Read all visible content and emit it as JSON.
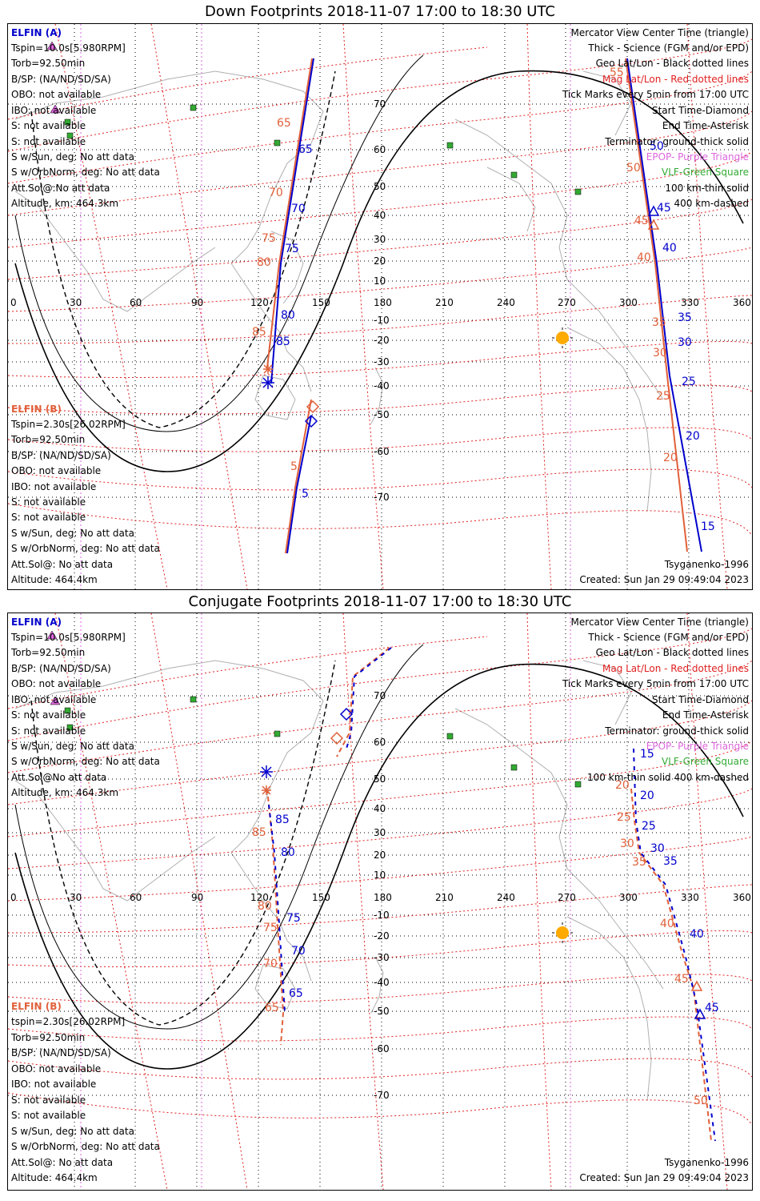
{
  "panels": [
    {
      "title": "Down Footprints 2018-11-07 17:00 to 18:30 UTC",
      "elfin_a": {
        "name": "ELFIN (A)",
        "lines": [
          "Tspin=10.0s[5.980RPM]",
          "Torb=92.50min",
          "B/SP: (NA/ND/SD/SA)",
          "OBO: not available",
          "IBO: not available",
          "S: not available",
          "S: not available",
          "S w/Sun, deg: No att data",
          "S w/OrbNorm, deg: No att data",
          "Att.Sol@:No att data",
          "Altitude, km: 464.3km"
        ]
      },
      "elfin_b": {
        "name": "ELFIN (B)",
        "lines": [
          "Tspin=2.30s[26.02RPM]",
          "Torb=92.50min",
          "B/SP: (NA/ND/SD/SA)",
          "OBO: not available",
          "IBO: not available",
          "S: not available",
          "S: not available",
          "S w/Sun, deg: No att data",
          "S w/OrbNorm, deg: No att data",
          "Att.Sol@: No att data",
          "Altitude: 464.4km"
        ]
      },
      "legend": [
        {
          "text": "Mercator View Center Time (triangle)",
          "color": "#000000"
        },
        {
          "text": "Thick - Science (FGM and/or EPD)",
          "color": "#000000"
        },
        {
          "text": "Geo Lat/Lon - Black dotted lines",
          "color": "#000000"
        },
        {
          "text": "Mag Lat/Lon - Red dotted lines",
          "color": "#e02020"
        },
        {
          "text": "Tick Marks every 5min from 17:00 UTC",
          "color": "#000000"
        },
        {
          "text": "Start Time-Diamond",
          "color": "#000000"
        },
        {
          "text": "End Time-Asterisk",
          "color": "#000000"
        },
        {
          "text": "Terminator: ground-thick solid",
          "color": "#000000"
        },
        {
          "text": "EPOP- Purple Triangle",
          "color": "#dd66dd"
        },
        {
          "text": "VLF-Green Square",
          "color": "#33aa33"
        },
        {
          "text": "100 km-thin solid",
          "color": "#000000"
        },
        {
          "text": "400 km-dashed",
          "color": "#000000"
        }
      ],
      "model": "Tsyganenko-1996",
      "created": "Created: Sun Jan 29 09:49:04 2023"
    },
    {
      "title": "Conjugate Footprints 2018-11-07 17:00 to 18:30 UTC",
      "elfin_a": {
        "name": "ELFIN (A)",
        "lines": [
          "Tspin=10.0s[5.980RPM]",
          "Torb=92.50min",
          "B/SP: (NA/ND/SD/SA)",
          "OBO: not available",
          "IBO: not available",
          "S: not available",
          "S: not available",
          "S w/Sun, deg: No att data",
          "S w/OrbNorm, deg: No att data",
          "Att.Sol@No att data",
          "Altitude, km: 464.3km"
        ]
      },
      "elfin_b": {
        "name": "ELFIN (B)",
        "lines": [
          "tspin=2.30s[26.02RPM]",
          "Torb=92.50min",
          "B/SP: (NA/ND/SD/SA)",
          "OBO: not available",
          "IBO: not available",
          "S: not available",
          "S: not available",
          "S w/Sun, deg: No att data",
          "S w/OrbNorm, deg: No att data",
          "Att.Sol@: No att data",
          "Altitude: 464.4km"
        ]
      },
      "legend": [
        {
          "text": "Mercator View Center Time (triangle)",
          "color": "#000000"
        },
        {
          "text": "Thick - Science (FGM and/or EPD)",
          "color": "#000000"
        },
        {
          "text": "Geo Lat/Lon - Black dotted lines",
          "color": "#000000"
        },
        {
          "text": "Mag Lat/Lon - Red dotted lines",
          "color": "#e02020"
        },
        {
          "text": "Tick Marks every 5min from 17:00 UTC",
          "color": "#000000"
        },
        {
          "text": "Start Time-Diamond",
          "color": "#000000"
        },
        {
          "text": "End Time-Asterisk",
          "color": "#000000"
        },
        {
          "text": "Terminator: ground-thick solid",
          "color": "#000000"
        },
        {
          "text": "EPOP- Purple Triangle",
          "color": "#dd66dd"
        },
        {
          "text": "VLF-Green Square",
          "color": "#33aa33"
        },
        {
          "text": "100 km-thin solid  400 km-dashed",
          "color": "#000000"
        }
      ],
      "model": "Tsyganenko-1996",
      "created": "Created: Sun Jan 29 09:49:04 2023"
    }
  ],
  "axes": {
    "lon_ticks": [
      "0",
      "30",
      "60",
      "90",
      "120",
      "150",
      "180",
      "210",
      "240",
      "270",
      "300",
      "330",
      "360"
    ],
    "lat_ticks": [
      "70",
      "60",
      "50",
      "40",
      "30",
      "20",
      "10",
      "-10",
      "-20",
      "-30",
      "-40",
      "-50",
      "-60",
      "-70"
    ]
  },
  "colors": {
    "elfin_a": "#0000cc",
    "elfin_b": "#e0603a",
    "mag_grid": "#e02020",
    "epop": "#dd66dd",
    "vlf": "#33aa33",
    "sun": "#ffaa00"
  },
  "tracks": {
    "down_a_ticks": [
      "65",
      "70",
      "75",
      "80",
      "85",
      "5",
      "50",
      "45",
      "40",
      "35",
      "30",
      "25",
      "20",
      "15"
    ],
    "down_b_ticks": [
      "65",
      "70",
      "75",
      "80",
      "85",
      "5",
      "55",
      "50",
      "45",
      "40",
      "35",
      "30",
      "25",
      "20"
    ],
    "conj_a_ticks": [
      "85",
      "80",
      "75",
      "70",
      "65",
      "15",
      "20",
      "25",
      "30",
      "35",
      "40",
      "45"
    ],
    "conj_b_ticks": [
      "85",
      "80",
      "75",
      "70",
      "65",
      "20",
      "25",
      "30",
      "35",
      "40",
      "45",
      "50"
    ]
  }
}
